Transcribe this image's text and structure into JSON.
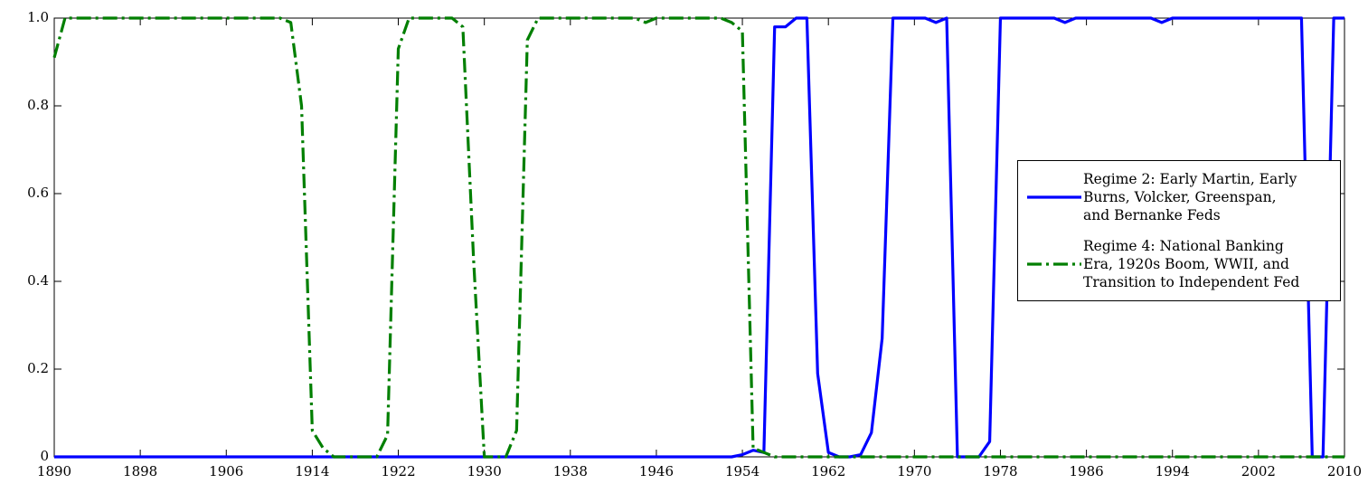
{
  "chart_data": {
    "type": "line",
    "x": [
      1890,
      1891,
      1892,
      1893,
      1894,
      1895,
      1896,
      1897,
      1898,
      1899,
      1900,
      1901,
      1902,
      1903,
      1904,
      1905,
      1906,
      1907,
      1908,
      1909,
      1910,
      1911,
      1912,
      1913,
      1914,
      1915,
      1916,
      1917,
      1918,
      1919,
      1920,
      1921,
      1922,
      1923,
      1924,
      1925,
      1926,
      1927,
      1928,
      1929,
      1930,
      1931,
      1932,
      1933,
      1934,
      1935,
      1936,
      1937,
      1938,
      1939,
      1940,
      1941,
      1942,
      1943,
      1944,
      1945,
      1946,
      1947,
      1948,
      1949,
      1950,
      1951,
      1952,
      1953,
      1954,
      1955,
      1956,
      1957,
      1958,
      1959,
      1960,
      1961,
      1962,
      1963,
      1964,
      1965,
      1966,
      1967,
      1968,
      1969,
      1970,
      1971,
      1972,
      1973,
      1974,
      1975,
      1976,
      1977,
      1978,
      1979,
      1980,
      1981,
      1982,
      1983,
      1984,
      1985,
      1986,
      1987,
      1988,
      1989,
      1990,
      1991,
      1992,
      1993,
      1994,
      1995,
      1996,
      1997,
      1998,
      1999,
      2000,
      2001,
      2002,
      2003,
      2004,
      2005,
      2006,
      2007,
      2008,
      2009,
      2010
    ],
    "series": [
      {
        "name": "Regime 2: Early Martin, Early Burns, Volcker, Greenspan, and Bernanke Feds",
        "color": "#0000ff",
        "dash": "solid",
        "values": [
          0,
          0,
          0,
          0,
          0,
          0,
          0,
          0,
          0,
          0,
          0,
          0,
          0,
          0,
          0,
          0,
          0,
          0,
          0,
          0,
          0,
          0,
          0,
          0,
          0,
          0,
          0,
          0,
          0,
          0,
          0,
          0,
          0,
          0,
          0,
          0,
          0,
          0,
          0,
          0,
          0,
          0,
          0,
          0,
          0,
          0,
          0,
          0,
          0,
          0,
          0,
          0,
          0,
          0,
          0,
          0,
          0,
          0,
          0,
          0,
          0,
          0,
          0,
          0,
          0.005,
          0.015,
          0.01,
          0.98,
          0.98,
          1,
          1,
          0.19,
          0.01,
          0,
          0,
          0.005,
          0.055,
          0.27,
          1,
          1,
          1,
          1,
          0.99,
          1,
          0,
          0,
          0,
          0.035,
          1,
          1,
          1,
          1,
          1,
          1,
          0.99,
          1,
          1,
          1,
          1,
          1,
          1,
          1,
          1,
          0.99,
          1,
          1,
          1,
          1,
          1,
          1,
          1,
          1,
          1,
          1,
          1,
          1,
          1,
          0,
          0,
          1,
          1
        ]
      },
      {
        "name": "Regime 4: National Banking Era, 1920s Boom, WWII, and Transition to Independent Fed",
        "color": "#007f00",
        "dash": "dashdot",
        "values": [
          0.91,
          1,
          1,
          1,
          1,
          1,
          1,
          1,
          1,
          1,
          1,
          1,
          1,
          1,
          1,
          1,
          1,
          1,
          1,
          1,
          1,
          1,
          0.99,
          0.8,
          0.06,
          0.02,
          0,
          0,
          0,
          0,
          0,
          0.05,
          0.93,
          1,
          1,
          1,
          1,
          1,
          0.98,
          0.45,
          0,
          0,
          0,
          0.06,
          0.95,
          1,
          1,
          1,
          1,
          1,
          1,
          1,
          1,
          1,
          1,
          0.99,
          1,
          1,
          1,
          1,
          1,
          1,
          1,
          0.99,
          0.97,
          0.02,
          0.01,
          0,
          0,
          0,
          0,
          0,
          0,
          0,
          0,
          0,
          0,
          0,
          0,
          0,
          0,
          0,
          0,
          0,
          0,
          0,
          0,
          0,
          0,
          0,
          0,
          0,
          0,
          0,
          0,
          0,
          0,
          0,
          0,
          0,
          0,
          0,
          0,
          0,
          0,
          0,
          0,
          0,
          0,
          0,
          0,
          0,
          0,
          0,
          0,
          0,
          0,
          0,
          0,
          0,
          0
        ]
      }
    ],
    "xlim": [
      1890,
      2010
    ],
    "xticks": [
      1890,
      1898,
      1906,
      1914,
      1922,
      1930,
      1938,
      1946,
      1954,
      1962,
      1970,
      1978,
      1986,
      1994,
      2002,
      2010
    ],
    "ylim": [
      0,
      1
    ],
    "yticks": [
      0,
      0.2,
      0.4,
      0.6,
      0.8,
      {
        "value": 1,
        "label": "1.0"
      }
    ],
    "grid": false,
    "legend": "right"
  }
}
